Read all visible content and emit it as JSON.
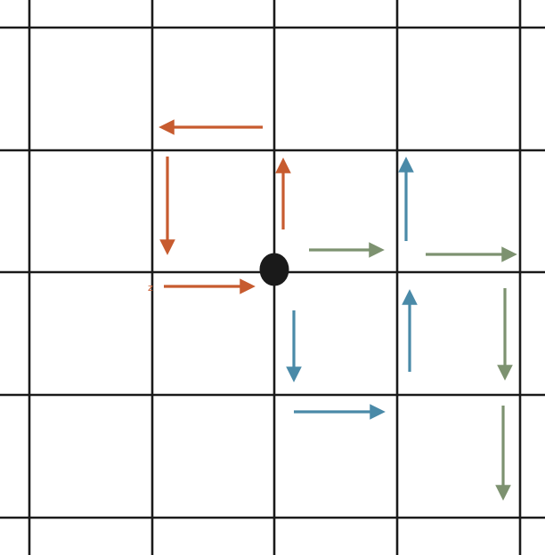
{
  "colors": {
    "background": "#ffffff",
    "grid": "#1a1a1a",
    "origin": "#1a1a1a",
    "orange": "#c75b2f",
    "blue": "#4a8aa8",
    "green": "#7d9270"
  },
  "labels": {
    "start_marker": "z"
  }
}
